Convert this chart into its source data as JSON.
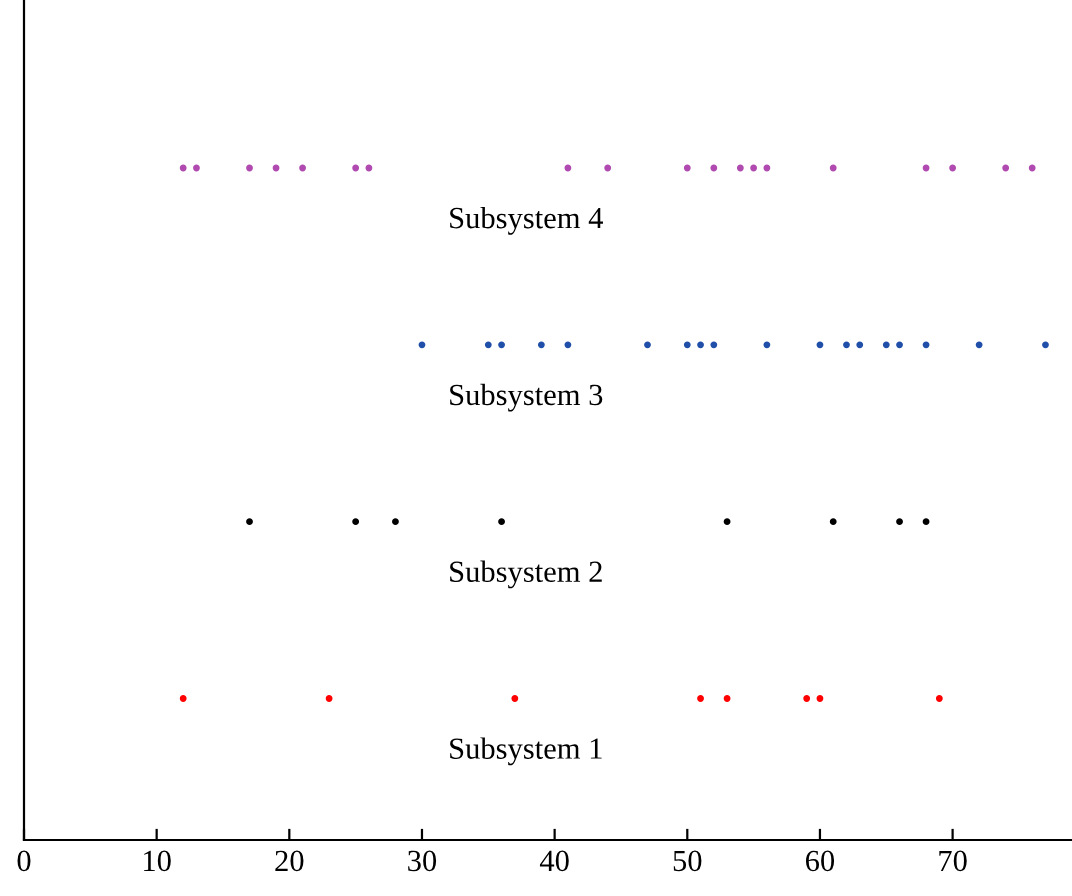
{
  "chart_data": {
    "type": "scatter",
    "orientation": "horizontal",
    "categories": [
      "Subsystem 4",
      "Subsystem 3",
      "Subsystem 2",
      "Subsystem 1"
    ],
    "xlim": [
      0,
      79
    ],
    "xticks": [
      0,
      10,
      20,
      30,
      40,
      50,
      60,
      70
    ],
    "grid": false,
    "marker": "circle",
    "series": [
      {
        "color": "#ff0000",
        "x": [
          "Subsystem 1",
          "Subsystem 1",
          "Subsystem 1",
          "Subsystem 1",
          "Subsystem 1",
          "Subsystem 1",
          "Subsystem 1",
          "Subsystem 1"
        ],
        "values": [
          12,
          23,
          37,
          51,
          53,
          59,
          60,
          69
        ]
      },
      {
        "color": "#000000",
        "x": [
          "Subsystem 2",
          "Subsystem 2",
          "Subsystem 2",
          "Subsystem 2",
          "Subsystem 2",
          "Subsystem 2",
          "Subsystem 2",
          "Subsystem 2"
        ],
        "values": [
          17,
          25,
          28,
          36,
          53,
          61,
          66,
          68
        ]
      },
      {
        "color": "#1f4fa8",
        "x": [
          "Subsystem 3",
          "Subsystem 3",
          "Subsystem 3",
          "Subsystem 3",
          "Subsystem 3",
          "Subsystem 3",
          "Subsystem 3",
          "Subsystem 3",
          "Subsystem 3",
          "Subsystem 3",
          "Subsystem 3",
          "Subsystem 3",
          "Subsystem 3",
          "Subsystem 3",
          "Subsystem 3",
          "Subsystem 3",
          "Subsystem 3",
          "Subsystem 3"
        ],
        "values": [
          30,
          35,
          36,
          39,
          41,
          47,
          50,
          51,
          52,
          56,
          60,
          62,
          63,
          65,
          66,
          68,
          72,
          77
        ]
      },
      {
        "color": "#b04ab0",
        "x": [
          "Subsystem 4",
          "Subsystem 4",
          "Subsystem 4",
          "Subsystem 4",
          "Subsystem 4",
          "Subsystem 4",
          "Subsystem 4",
          "Subsystem 4",
          "Subsystem 4",
          "Subsystem 4",
          "Subsystem 4",
          "Subsystem 4",
          "Subsystem 4",
          "Subsystem 4",
          "Subsystem 4",
          "Subsystem 4",
          "Subsystem 4",
          "Subsystem 4",
          "Subsystem 4"
        ],
        "values": [
          12,
          13,
          17,
          19,
          21,
          25,
          26,
          41,
          44,
          50,
          52,
          54,
          55,
          56,
          61,
          68,
          70,
          74,
          76
        ]
      }
    ]
  }
}
